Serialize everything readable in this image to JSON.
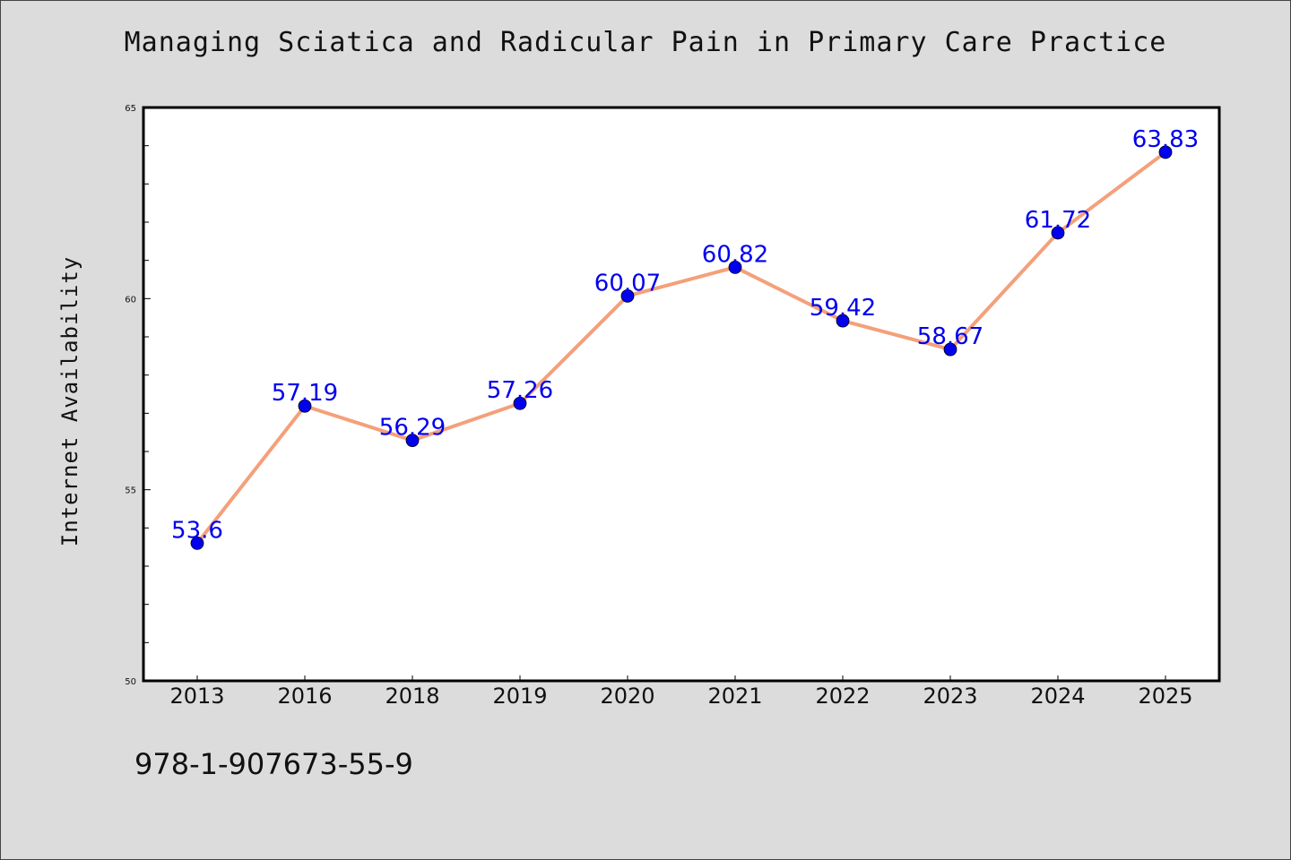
{
  "title": "Managing Sciatica and Radicular Pain in Primary Care Practice",
  "footer": "978-1-907673-55-9",
  "colors": {
    "background": "#dcdcdc",
    "plot_area": "#ffffff",
    "line": "#f4a07a",
    "marker": "#0000ee",
    "data_label": "#0000ee"
  },
  "chart_data": {
    "type": "line",
    "title": "Managing Sciatica and Radicular Pain in Primary Care Practice",
    "xlabel": "",
    "ylabel": "Internet Availability",
    "categories": [
      "2013",
      "2016",
      "2018",
      "2019",
      "2020",
      "2021",
      "2022",
      "2023",
      "2024",
      "2025"
    ],
    "series": [
      {
        "values": [
          53.6,
          57.19,
          56.29,
          57.26,
          60.07,
          60.82,
          59.42,
          58.67,
          61.72,
          63.83
        ],
        "labels": [
          "53.6",
          "57.19",
          "56.29",
          "57.26",
          "60.07",
          "60.82",
          "59.42",
          "58.67",
          "61.72",
          "63.83"
        ]
      }
    ],
    "ylim": [
      50,
      65
    ],
    "yticks": [
      50,
      55,
      60,
      65
    ],
    "grid": false,
    "legend": "none"
  }
}
